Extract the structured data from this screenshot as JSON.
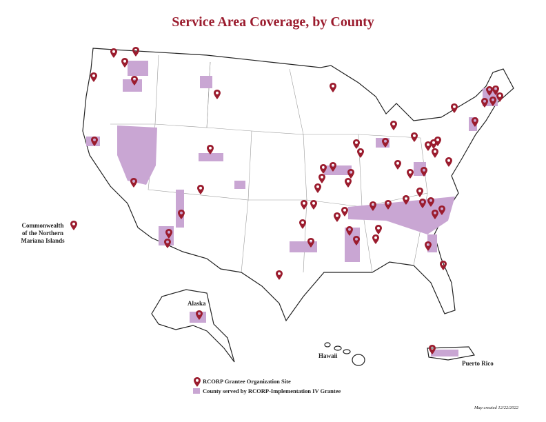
{
  "header": {
    "title": "Service Area Coverage, by County"
  },
  "labels": {
    "mariana": [
      "Commonwealth",
      "of the Northern",
      "Mariana Islands"
    ],
    "alaska": "Alaska",
    "hawaii": "Hawaii",
    "puerto_rico": "Puerto Rico"
  },
  "legend": {
    "items": [
      "RCORP Grantee Organization Site",
      "County served by RCORP-Implementation IV Grantee"
    ]
  },
  "footnote": "Map created 12/22/2022"
}
